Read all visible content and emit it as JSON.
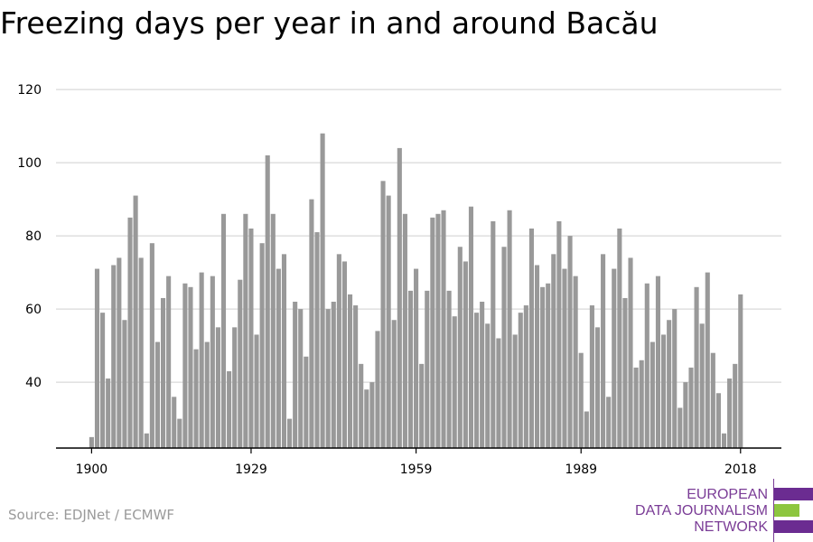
{
  "title": "Freezing days per year in and around Bacău",
  "source": "Source: EDJNet / ECMWF",
  "logo": {
    "lines": [
      "EUROPEAN",
      "DATA JOURNALISM",
      "NETWORK"
    ],
    "colors": {
      "purple": "#6b2c91",
      "green": "#8dc63f"
    }
  },
  "chart_data": {
    "type": "bar",
    "title": "Freezing days per year in and around Bacău",
    "xlabel": "",
    "ylabel": "",
    "x_start": 1900,
    "x_end": 2018,
    "xticks": [
      1900,
      1929,
      1959,
      1989,
      2018
    ],
    "yticks": [
      40,
      60,
      80,
      100,
      120
    ],
    "ylim": [
      22,
      122
    ],
    "bar_color": "#999999",
    "grid": true,
    "values": [
      25,
      71,
      59,
      41,
      72,
      74,
      57,
      85,
      91,
      74,
      26,
      78,
      51,
      63,
      69,
      36,
      30,
      67,
      66,
      49,
      70,
      51,
      69,
      55,
      86,
      43,
      55,
      68,
      86,
      82,
      53,
      78,
      102,
      86,
      71,
      75,
      30,
      62,
      60,
      47,
      90,
      81,
      108,
      60,
      62,
      75,
      73,
      64,
      61,
      45,
      38,
      40,
      54,
      95,
      91,
      57,
      104,
      86,
      65,
      71,
      45,
      65,
      85,
      86,
      87,
      65,
      58,
      77,
      73,
      88,
      59,
      62,
      56,
      84,
      52,
      77,
      87,
      53,
      59,
      61,
      82,
      72,
      66,
      67,
      75,
      84,
      71,
      80,
      69,
      48,
      32,
      61,
      55,
      75,
      36,
      71,
      82,
      63,
      74,
      44,
      46,
      67,
      51,
      69,
      53,
      57,
      60,
      33,
      40,
      44,
      66,
      56,
      70,
      48,
      37,
      26,
      41,
      45,
      64
    ]
  }
}
